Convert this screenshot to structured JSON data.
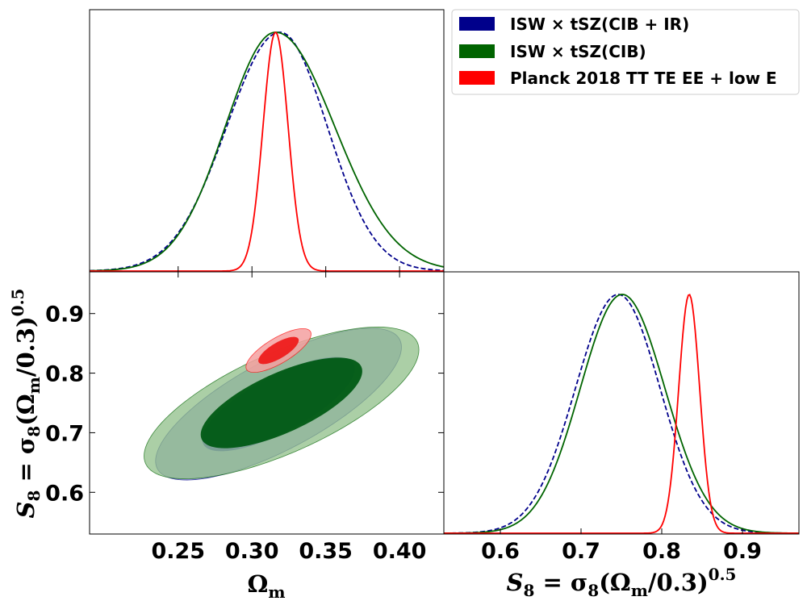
{
  "chart_data": {
    "type": "triangle-corner-plot",
    "parameters": {
      "omega_m": {
        "label": "Ω",
        "label_sub": "m",
        "range": [
          0.19,
          0.43
        ],
        "ticks": [
          "0.25",
          "0.30",
          "0.35",
          "0.40"
        ],
        "tick_values": [
          0.25,
          0.3,
          0.35,
          0.4
        ]
      },
      "s8": {
        "label_prefix": "S",
        "label_prefix_sub": "8",
        "label_rest": " = σ",
        "label_rest_sub": "8",
        "label_tail": "(Ω",
        "label_tail_sub": "m",
        "label_end": "/0.3)",
        "label_exp": "0.5",
        "range": [
          0.53,
          0.97
        ],
        "ticks": [
          "0.6",
          "0.7",
          "0.8",
          "0.9"
        ],
        "tick_values": [
          0.6,
          0.7,
          0.8,
          0.9
        ]
      }
    },
    "legend": [
      {
        "label": "ISW × tSZ(CIB + IR)",
        "color": "#00008b"
      },
      {
        "label": "ISW × tSZ(CIB)",
        "color": "#006400"
      },
      {
        "label": "Planck 2018 TT TE EE + low E",
        "color": "#ff0000"
      }
    ],
    "series": [
      {
        "name": "ISW × tSZ(CIB + IR)",
        "color": "#00008b",
        "line_style": "dashed",
        "fill_inner": "#3a3ab8",
        "fill_outer": "#8f8fd6",
        "omega_m_marginal": {
          "mean": 0.319,
          "sigma_left": 0.036,
          "sigma_right": 0.032
        },
        "s8_marginal": {
          "mean": 0.746,
          "sigma_left": 0.053,
          "sigma_right": 0.052
        },
        "contour_68": {
          "center": [
            0.318,
            0.748
          ],
          "sigma_om": 0.034,
          "sigma_s8": 0.052,
          "rho": 0.75
        },
        "contour_95": {
          "center": [
            0.318,
            0.748
          ],
          "sigma_om": 0.034,
          "sigma_s8": 0.052,
          "rho": 0.75
        }
      },
      {
        "name": "ISW × tSZ(CIB)",
        "color": "#006400",
        "line_style": "solid",
        "fill_inner": "#005a14",
        "fill_outer": "#8fbf88",
        "omega_m_marginal": {
          "mean": 0.316,
          "sigma_left": 0.034,
          "sigma_right": 0.04
        },
        "s8_marginal": {
          "mean": 0.751,
          "sigma_left": 0.052,
          "sigma_right": 0.053
        },
        "contour_68": {
          "center": [
            0.32,
            0.75
          ],
          "sigma_om": 0.036,
          "sigma_s8": 0.05,
          "rho": 0.7
        },
        "contour_95": {
          "center": [
            0.32,
            0.75
          ],
          "sigma_om": 0.038,
          "sigma_s8": 0.052,
          "rho": 0.7
        }
      },
      {
        "name": "Planck 2018 TT TE EE + low E",
        "color": "#ff0000",
        "line_style": "solid",
        "fill_inner": "#ee1c1c",
        "fill_outer": "#f4a0a0",
        "omega_m_marginal": {
          "mean": 0.316,
          "sigma_left": 0.0085,
          "sigma_right": 0.0085
        },
        "s8_marginal": {
          "mean": 0.834,
          "sigma_left": 0.013,
          "sigma_right": 0.013
        },
        "contour_68": {
          "center": [
            0.318,
            0.838
          ],
          "sigma_om": 0.009,
          "sigma_s8": 0.015,
          "rho": 0.75
        },
        "contour_95": {
          "center": [
            0.318,
            0.838
          ],
          "sigma_om": 0.009,
          "sigma_s8": 0.015,
          "rho": 0.75
        }
      }
    ]
  }
}
